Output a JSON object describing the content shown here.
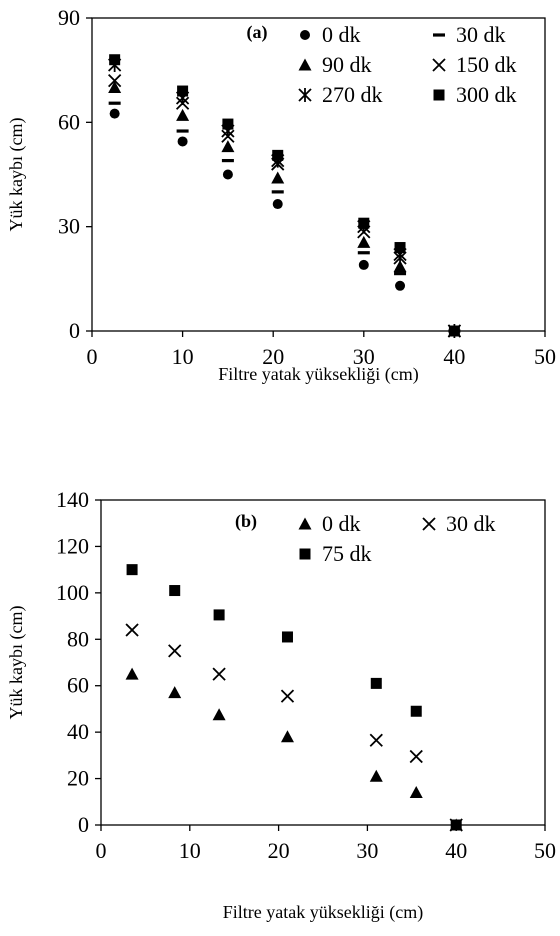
{
  "chart_data": [
    {
      "type": "scatter",
      "panel_label": "(a)",
      "xlabel": "Filtre yatak yüksekliği (cm)",
      "ylabel": "Yük kaybı (cm)",
      "xlim": [
        0,
        50
      ],
      "ylim": [
        0,
        90
      ],
      "xticks": [
        0,
        10,
        20,
        30,
        40,
        50
      ],
      "yticks": [
        0,
        30,
        60,
        90
      ],
      "grid": false,
      "legend_position": "top-right",
      "x": [
        2.5,
        10,
        15,
        20.5,
        30,
        34,
        40
      ],
      "series": [
        {
          "name": "0 dk",
          "marker": "circle",
          "values": [
            62.5,
            54.5,
            45,
            36.5,
            19,
            13,
            0
          ]
        },
        {
          "name": "30 dk",
          "marker": "dash",
          "values": [
            65.5,
            57.5,
            49,
            40,
            22.5,
            16.5,
            0
          ]
        },
        {
          "name": "90 dk",
          "marker": "triangle",
          "values": [
            70,
            62,
            53,
            44,
            25.5,
            18.5,
            0
          ]
        },
        {
          "name": "150 dk",
          "marker": "x",
          "values": [
            72,
            65.5,
            56,
            48,
            28.5,
            21,
            0
          ]
        },
        {
          "name": "270 dk",
          "marker": "star",
          "values": [
            76.5,
            67,
            57.5,
            49,
            30,
            22,
            0
          ]
        },
        {
          "name": "300 dk",
          "marker": "square",
          "values": [
            78,
            69,
            59.5,
            50.5,
            31,
            24,
            0
          ]
        }
      ]
    },
    {
      "type": "scatter",
      "panel_label": "(b)",
      "xlabel": "Filtre yatak yüksekliği (cm)",
      "ylabel": "Yük kaybı (cm)",
      "xlim": [
        0,
        50
      ],
      "ylim": [
        0,
        140
      ],
      "xticks": [
        0,
        10,
        20,
        30,
        40,
        50
      ],
      "yticks": [
        0,
        20,
        40,
        60,
        80,
        100,
        120,
        140
      ],
      "grid": false,
      "legend_position": "top-right",
      "x": [
        3.5,
        8.3,
        13.3,
        21,
        31,
        35.5,
        40
      ],
      "series": [
        {
          "name": "0 dk",
          "marker": "triangle",
          "values": [
            65,
            57,
            47.5,
            38,
            21,
            14,
            0
          ]
        },
        {
          "name": "30 dk",
          "marker": "x",
          "values": [
            84,
            75,
            65,
            55.5,
            36.5,
            29.5,
            0
          ]
        },
        {
          "name": "75 dk",
          "marker": "square",
          "values": [
            110,
            101,
            90.5,
            81,
            61,
            49,
            0
          ]
        }
      ]
    }
  ]
}
